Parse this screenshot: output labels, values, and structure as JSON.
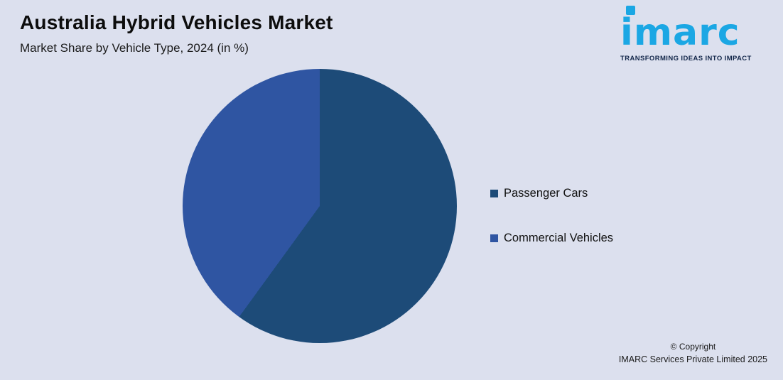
{
  "header": {
    "title": "Australia Hybrid Vehicles Market",
    "subtitle": "Market Share by Vehicle Type, 2024 (in %)"
  },
  "logo": {
    "text": "imarc",
    "tagline": "TRANSFORMING IDEAS INTO IMPACT",
    "brand_color": "#1ba7e4"
  },
  "chart_data": {
    "type": "pie",
    "title": "Australia Hybrid Vehicles Market",
    "subtitle": "Market Share by Vehicle Type, 2024 (in %)",
    "labels": [
      "Passenger Cars",
      "Commercial Vehicles"
    ],
    "values": [
      60,
      40
    ],
    "colors": [
      "#1d4b78",
      "#2f55a2"
    ],
    "start_angle_deg": 0,
    "direction": "clockwise",
    "legend_position": "right",
    "value_labels_shown": false
  },
  "legend": {
    "items": [
      {
        "label": "Passenger Cars",
        "color": "#1d4b78"
      },
      {
        "label": "Commercial Vehicles",
        "color": "#2f55a2"
      }
    ]
  },
  "footer": {
    "copyright_line1": "© Copyright",
    "copyright_line2": "IMARC Services Private Limited 2025"
  },
  "colors": {
    "background": "#dce0ee",
    "title_text": "#0d0d0d",
    "body_text": "#1a1a1a"
  }
}
